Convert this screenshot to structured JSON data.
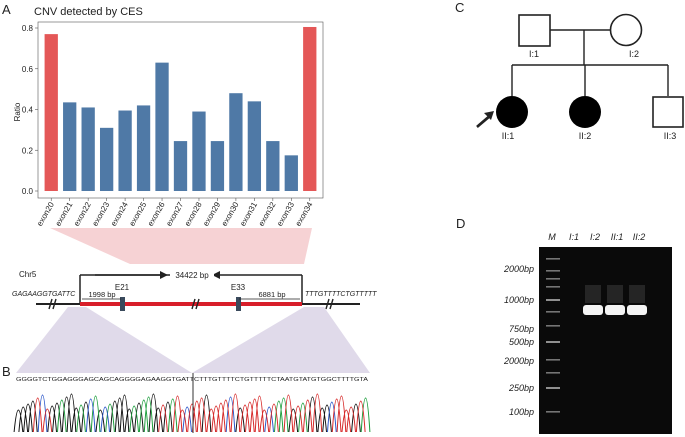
{
  "panels": {
    "a": "A",
    "b": "B",
    "c": "C",
    "d": "D"
  },
  "chart_data": {
    "type": "bar",
    "title": "CNV detected by CES",
    "xlabel": "",
    "ylabel": "Ratio",
    "ylim": [
      0,
      0.8
    ],
    "yticks": [
      "0.0",
      "0.2",
      "0.4",
      "0.6",
      "0.8"
    ],
    "categories": [
      "exon20",
      "exon21",
      "exon22",
      "exon23",
      "exon24",
      "exon25",
      "exon26",
      "exon27",
      "exon28",
      "exon29",
      "exon30",
      "exon31",
      "exon32",
      "exon33",
      "exon34"
    ],
    "values": [
      0.77,
      0.435,
      0.41,
      0.31,
      0.395,
      0.42,
      0.63,
      0.245,
      0.39,
      0.245,
      0.48,
      0.44,
      0.245,
      0.175,
      0.805
    ],
    "highlight": [
      true,
      false,
      false,
      false,
      false,
      false,
      false,
      false,
      false,
      false,
      false,
      false,
      false,
      false,
      true
    ],
    "colors": {
      "normal": "#4f79a6",
      "highlight": "#e45757"
    }
  },
  "gene_diagram": {
    "chrom": "Chr5",
    "left_seq": "GAGAAGGTGATTC",
    "right_seq": "TTTGTTTTCTGTTTTT",
    "deletion_label": "34422 bp",
    "exon_left": "E21",
    "exon_right": "E33",
    "left_dist": "1998 bp",
    "right_dist": "6881 bp"
  },
  "sequence_b": "GGGGTCTGGAGGGAGCAGCAGGGGAGAAGGTGATTCTTTGTTTTCTGTTTTTCTAATGTATGTGGCTTTTGTA",
  "pedigree": {
    "labels": [
      "I:1",
      "I:2",
      "II:1",
      "II:2",
      "II:3"
    ]
  },
  "gel": {
    "lanes": [
      "M",
      "I:1",
      "I:2",
      "II:1",
      "II:2"
    ],
    "marker_labels": [
      "2000bp",
      "1000bp",
      "750bp",
      "500bp",
      "2000bp",
      "250bp",
      "100bp"
    ]
  },
  "colors": {
    "red_bar": "#d81e2a",
    "pink_wedge": "#f6d2d4",
    "lavender_wedge": "#ddd6e8"
  }
}
